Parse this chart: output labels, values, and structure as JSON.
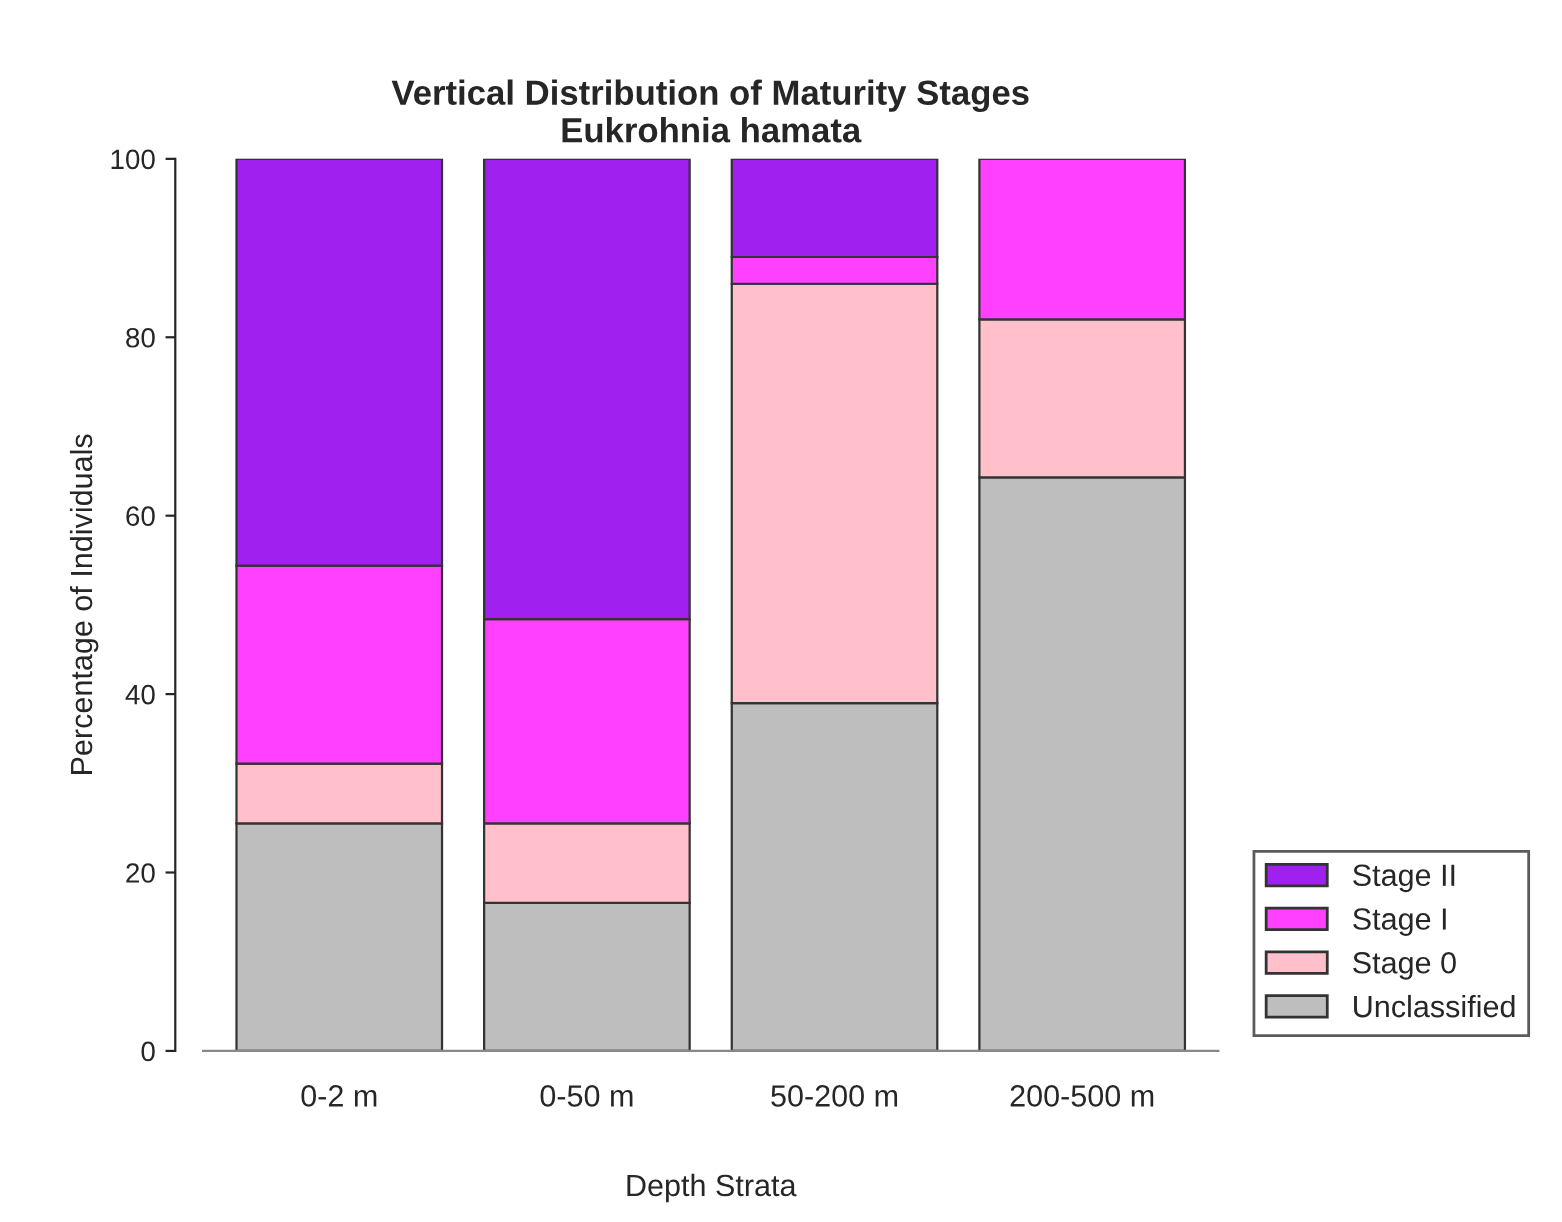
{
  "chart_data": {
    "type": "bar",
    "title": "Vertical Distribution of Maturity Stages\nEukrohnia hamata",
    "xlabel": "Depth Strata",
    "ylabel": "Percentage of Individuals",
    "categories": [
      "0-2 m",
      "0-50 m",
      "50-200 m",
      "200-500 m"
    ],
    "stacked": true,
    "series": [
      {
        "name": "Unclassified",
        "color": "#bebebe",
        "values": [
          25.5,
          16.6,
          39.0,
          64.3
        ]
      },
      {
        "name": "Stage 0",
        "color": "#ffc0cb",
        "values": [
          6.7,
          8.9,
          47.0,
          17.7
        ]
      },
      {
        "name": "Stage I",
        "color": "#ff40ff",
        "values": [
          22.2,
          22.9,
          3.0,
          18.0
        ]
      },
      {
        "name": "Stage II",
        "color": "#a020f0",
        "values": [
          45.6,
          51.6,
          11.0,
          null
        ]
      }
    ],
    "ylim": [
      0,
      100
    ],
    "yticks": [
      0,
      20,
      40,
      60,
      80,
      100
    ],
    "grid": false,
    "legend": "bottom right"
  }
}
